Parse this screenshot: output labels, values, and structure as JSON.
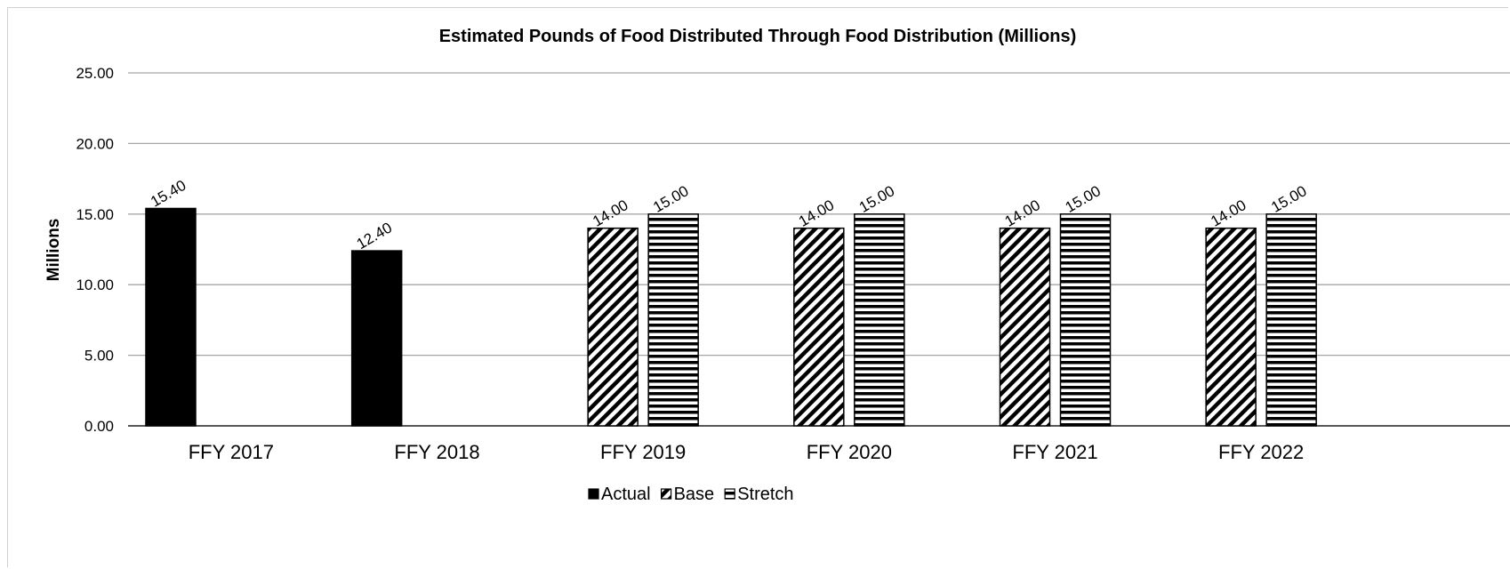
{
  "chart_data": {
    "type": "bar",
    "title": "Estimated Pounds of Food Distributed Through Food Distribution (Millions)",
    "xlabel": "",
    "ylabel": "Millions",
    "ylim": [
      0,
      25
    ],
    "yticks": [
      "0.00",
      "5.00",
      "10.00",
      "15.00",
      "20.00",
      "25.00"
    ],
    "categories": [
      "FFY 2017",
      "FFY 2018",
      "FFY 2019",
      "FFY 2020",
      "FFY 2021",
      "FFY 2022"
    ],
    "series": [
      {
        "name": "Actual",
        "values": [
          15.4,
          12.4,
          null,
          null,
          null,
          null
        ],
        "labels": [
          "15.40",
          "12.40",
          null,
          null,
          null,
          null
        ],
        "pattern": "solid",
        "color": "#000000"
      },
      {
        "name": "Base",
        "values": [
          null,
          null,
          14.0,
          14.0,
          14.0,
          14.0
        ],
        "labels": [
          null,
          null,
          "14.00",
          "14.00",
          "14.00",
          "14.00"
        ],
        "pattern": "diagonal-hatch",
        "color": "#000000"
      },
      {
        "name": "Stretch",
        "values": [
          null,
          null,
          15.0,
          15.0,
          15.0,
          15.0
        ],
        "labels": [
          null,
          null,
          "15.00",
          "15.00",
          "15.00",
          "15.00"
        ],
        "pattern": "horizontal-lines",
        "color": "#000000"
      }
    ],
    "grid": true,
    "legend_position": "bottom",
    "gridline_color": "#a6a6a6"
  }
}
